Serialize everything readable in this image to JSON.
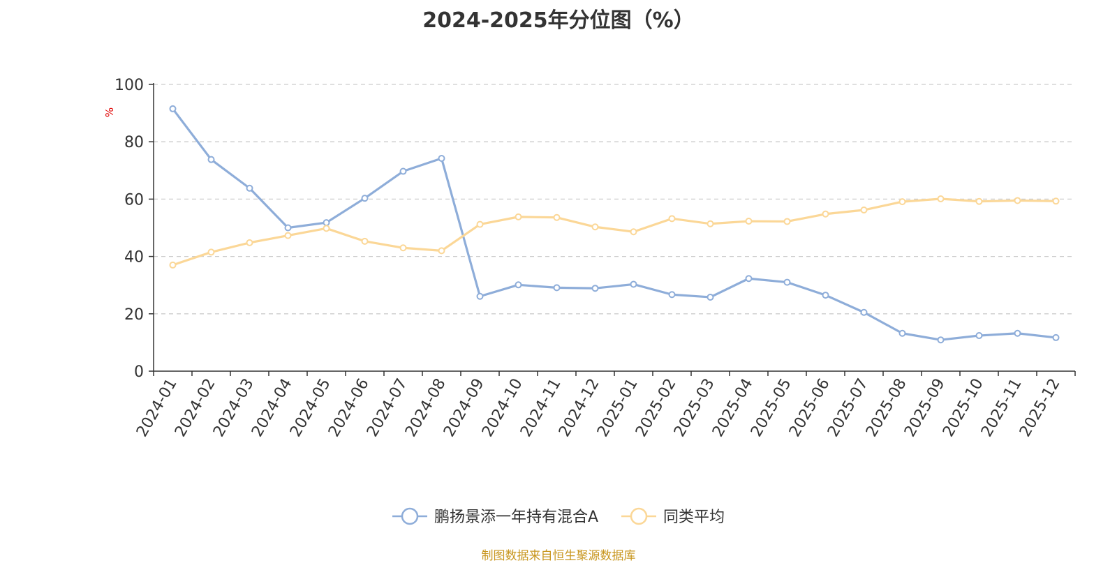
{
  "chart_data": {
    "type": "line",
    "title": "2024-2025年分位图（%）",
    "ylabel": "%",
    "ylim": [
      0,
      100
    ],
    "yticks": [
      0,
      20,
      40,
      60,
      80,
      100
    ],
    "grid": true,
    "legend_position": "bottom-center",
    "categories": [
      "2024-01",
      "2024-02",
      "2024-03",
      "2024-04",
      "2024-05",
      "2024-06",
      "2024-07",
      "2024-08",
      "2024-09",
      "2024-10",
      "2024-11",
      "2024-12",
      "2025-01",
      "2025-02",
      "2025-03",
      "2025-04",
      "2025-05",
      "2025-06",
      "2025-07",
      "2025-08",
      "2025-09",
      "2025-10",
      "2025-11",
      "2025-12"
    ],
    "series": [
      {
        "name": "鹏扬景添一年持有混合A",
        "color": "#8eadd9",
        "values": [
          91.5,
          73.8,
          63.8,
          50.0,
          51.8,
          60.3,
          69.7,
          74.2,
          26.1,
          30.1,
          29.1,
          28.9,
          30.3,
          26.7,
          25.8,
          32.3,
          31.0,
          26.5,
          20.5,
          13.2,
          10.9,
          12.4,
          13.2,
          11.7
        ]
      },
      {
        "name": "同类平均",
        "color": "#fbd797",
        "values": [
          37.0,
          41.5,
          44.8,
          47.3,
          49.8,
          45.3,
          43.0,
          42.0,
          51.2,
          53.8,
          53.6,
          50.3,
          48.6,
          53.2,
          51.4,
          52.3,
          52.2,
          54.8,
          56.2,
          59.1,
          60.1,
          59.2,
          59.5,
          59.3
        ]
      }
    ]
  },
  "source_note": "制图数据来自恒生聚源数据库"
}
